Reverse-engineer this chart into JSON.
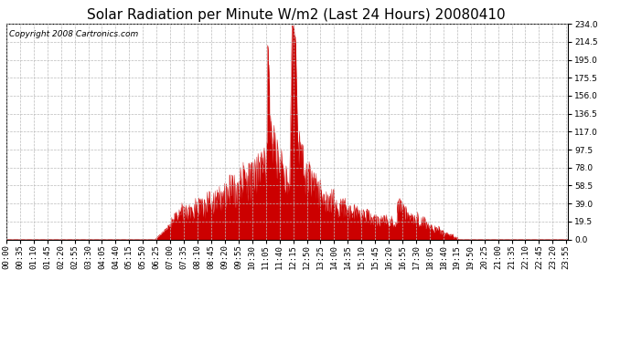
{
  "title": "Solar Radiation per Minute W/m2 (Last 24 Hours) 20080410",
  "copyright_text": "Copyright 2008 Cartronics.com",
  "fill_color": "#CC0000",
  "line_color": "#CC0000",
  "bg_color": "#ffffff",
  "grid_color": "#bbbbbb",
  "baseline_color": "#CC0000",
  "ylim": [
    0.0,
    234.0
  ],
  "yticks": [
    0.0,
    19.5,
    39.0,
    58.5,
    78.0,
    97.5,
    117.0,
    136.5,
    156.0,
    175.5,
    195.0,
    214.5,
    234.0
  ],
  "title_fontsize": 11,
  "tick_fontsize": 6.5,
  "copyright_fontsize": 6.5,
  "xtick_interval": 35,
  "total_minutes": 1440
}
